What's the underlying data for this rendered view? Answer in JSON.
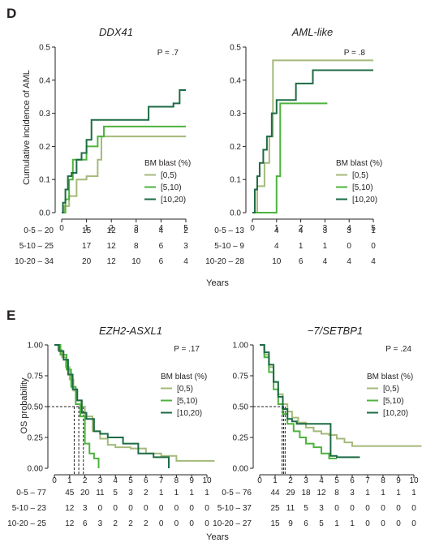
{
  "colors": {
    "g05": "#a5b97a",
    "g510": "#4db33d",
    "g1020": "#1d6b45",
    "axis": "#231f20",
    "dash": "#231f20"
  },
  "legend": {
    "title": "BM blast (%)",
    "entries": [
      "[0,5)",
      "[5,10)",
      "[10,20)"
    ],
    "series_colors": [
      "#a5b97a",
      "#4db33d",
      "#1d6b45"
    ]
  },
  "panel_d": {
    "letter": "D",
    "ylabel": "Cumulative incidence of AML",
    "xlabel": "Years",
    "yticks": [
      "0.0",
      "0.1",
      "0.2",
      "0.3",
      "0.4",
      "0.5"
    ],
    "xticks": [
      "0",
      "1",
      "2",
      "3",
      "4",
      "5"
    ]
  },
  "panel_e": {
    "letter": "E",
    "ylabel": "OS probability",
    "xlabel": "Years",
    "yticks": [
      "0.00",
      "0.25",
      "0.50",
      "0.75",
      "1.00"
    ],
    "xticks": [
      "0",
      "1",
      "2",
      "3",
      "4",
      "5",
      "6",
      "7",
      "8",
      "9",
      "10"
    ]
  },
  "chart_data": [
    {
      "type": "line",
      "panel": "D",
      "title": "DDX41",
      "pvalue": "P = .7",
      "ylabel": "Cumulative incidence of AML",
      "xlabel": "Years",
      "xlim": [
        0,
        5
      ],
      "ylim": [
        0,
        0.5
      ],
      "series": [
        {
          "name": "[0,5)",
          "x": [
            0,
            0.1,
            0.3,
            0.6,
            1.0,
            1.45,
            1.6,
            5.0
          ],
          "y": [
            0,
            0.02,
            0.05,
            0.1,
            0.11,
            0.16,
            0.23,
            0.23
          ]
        },
        {
          "name": "[5,10)",
          "x": [
            0,
            0.15,
            0.3,
            0.45,
            0.7,
            1.0,
            1.45,
            1.7,
            5.0
          ],
          "y": [
            0,
            0.04,
            0.1,
            0.16,
            0.16,
            0.2,
            0.23,
            0.26,
            0.26
          ]
        },
        {
          "name": "[10,20)",
          "x": [
            0,
            0.05,
            0.15,
            0.25,
            0.4,
            0.6,
            0.8,
            1.0,
            1.2,
            2.0,
            3.5,
            4.2,
            4.5,
            4.75,
            5.0
          ],
          "y": [
            0,
            0.03,
            0.07,
            0.11,
            0.12,
            0.16,
            0.18,
            0.22,
            0.28,
            0.28,
            0.32,
            0.32,
            0.33,
            0.37,
            0.37
          ]
        }
      ],
      "at_risk": {
        "x": [
          0,
          1,
          2,
          3,
          4,
          5
        ],
        "rows": [
          {
            "label": "0-5 – 20",
            "values": [
              "15",
              "12",
              "8",
              "4",
              "2"
            ]
          },
          {
            "label": "5-10 – 25",
            "values": [
              "17",
              "12",
              "8",
              "6",
              "3"
            ]
          },
          {
            "label": "10-20 – 34",
            "values": [
              "20",
              "12",
              "10",
              "6",
              "4"
            ]
          }
        ]
      }
    },
    {
      "type": "line",
      "panel": "D",
      "title": "AML-like",
      "pvalue": "P = .8",
      "xlabel": "Years",
      "xlim": [
        0,
        5
      ],
      "ylim": [
        0,
        0.5
      ],
      "series": [
        {
          "name": "[0,5)",
          "x": [
            0,
            0.2,
            0.5,
            0.7,
            0.85,
            5.0
          ],
          "y": [
            0,
            0.08,
            0.15,
            0.23,
            0.46,
            0.46
          ]
        },
        {
          "name": "[5,10)",
          "x": [
            0,
            0.4,
            1.0,
            1.15,
            3.1
          ],
          "y": [
            0,
            0,
            0.11,
            0.33,
            0.33
          ]
        },
        {
          "name": "[10,20)",
          "x": [
            0,
            0.1,
            0.2,
            0.3,
            0.45,
            0.6,
            0.8,
            1.0,
            1.8,
            2.5,
            3.0,
            5.0
          ],
          "y": [
            0,
            0.07,
            0.11,
            0.15,
            0.19,
            0.23,
            0.3,
            0.34,
            0.39,
            0.43,
            0.43,
            0.43
          ]
        }
      ],
      "at_risk": {
        "x": [
          0,
          1,
          2,
          3,
          4,
          5
        ],
        "rows": [
          {
            "label": "0-5 – 13",
            "values": [
              "4",
              "4",
              "3",
              "3",
              "1"
            ]
          },
          {
            "label": "5-10 – 9",
            "values": [
              "4",
              "1",
              "1",
              "0",
              "0"
            ]
          },
          {
            "label": "10-20 – 28",
            "values": [
              "10",
              "6",
              "4",
              "4",
              "4"
            ]
          }
        ]
      }
    },
    {
      "type": "line",
      "panel": "E",
      "title": "EZH2-ASXL1",
      "pvalue": "P = .17",
      "ylabel": "OS probability",
      "xlabel": "Years",
      "xlim": [
        0,
        10
      ],
      "ylim": [
        0,
        1
      ],
      "median_lines": [
        1.3,
        1.6,
        1.9
      ],
      "series": [
        {
          "name": "[0,5)",
          "x": [
            0,
            0.25,
            0.5,
            0.75,
            1.0,
            1.25,
            1.5,
            1.75,
            2.0,
            2.5,
            3.0,
            3.5,
            4.0,
            5.0,
            6.0,
            7.0,
            8.0,
            10.5
          ],
          "y": [
            1.0,
            0.96,
            0.9,
            0.82,
            0.72,
            0.63,
            0.55,
            0.5,
            0.42,
            0.3,
            0.24,
            0.19,
            0.17,
            0.16,
            0.12,
            0.1,
            0.06,
            0.06
          ]
        },
        {
          "name": "[5,10)",
          "x": [
            0,
            0.4,
            0.8,
            1.1,
            1.4,
            1.7,
            2.0,
            2.3,
            2.6,
            2.9
          ],
          "y": [
            1.0,
            0.92,
            0.8,
            0.66,
            0.52,
            0.42,
            0.2,
            0.12,
            0.08,
            0.0
          ]
        },
        {
          "name": "[10,20)",
          "x": [
            0,
            0.3,
            0.6,
            0.9,
            1.2,
            1.5,
            1.8,
            2.1,
            2.6,
            3.0,
            3.5,
            4.5,
            5.5,
            6.5,
            7.5
          ],
          "y": [
            1.0,
            0.95,
            0.88,
            0.76,
            0.64,
            0.55,
            0.45,
            0.4,
            0.3,
            0.28,
            0.25,
            0.2,
            0.12,
            0.09,
            0.0
          ]
        }
      ],
      "at_risk": {
        "x": [
          0,
          1,
          2,
          3,
          4,
          5,
          6,
          7,
          8,
          9,
          10
        ],
        "rows": [
          {
            "label": "0-5 – 77",
            "values": [
              "45",
              "20",
              "11",
              "5",
              "3",
              "2",
              "1",
              "1",
              "1",
              "1"
            ]
          },
          {
            "label": "5-10 – 23",
            "values": [
              "12",
              "3",
              "0",
              "0",
              "0",
              "0",
              "0",
              "0",
              "0",
              "0"
            ]
          },
          {
            "label": "10-20 – 25",
            "values": [
              "12",
              "6",
              "3",
              "2",
              "2",
              "2",
              "0",
              "0",
              "0",
              "0"
            ]
          }
        ]
      }
    },
    {
      "type": "line",
      "panel": "E",
      "title": "−7/SETBP1",
      "pvalue": "P = .24",
      "xlabel": "Years",
      "xlim": [
        0,
        10
      ],
      "ylim": [
        0,
        1
      ],
      "median_lines": [
        1.45,
        1.55,
        1.65
      ],
      "series": [
        {
          "name": "[0,5)",
          "x": [
            0,
            0.3,
            0.6,
            0.9,
            1.2,
            1.5,
            1.8,
            2.1,
            2.5,
            3.0,
            3.5,
            4.0,
            4.5,
            5.0,
            5.5,
            6.0,
            10.5
          ],
          "y": [
            1.0,
            0.92,
            0.82,
            0.7,
            0.6,
            0.52,
            0.46,
            0.41,
            0.37,
            0.33,
            0.3,
            0.28,
            0.27,
            0.24,
            0.21,
            0.18,
            0.18
          ]
        },
        {
          "name": "[5,10)",
          "x": [
            0,
            0.3,
            0.6,
            0.9,
            1.2,
            1.5,
            1.8,
            2.2,
            2.6,
            3.0,
            3.5,
            4.0,
            4.5,
            5.0
          ],
          "y": [
            1.0,
            0.9,
            0.78,
            0.64,
            0.52,
            0.44,
            0.36,
            0.3,
            0.25,
            0.2,
            0.17,
            0.12,
            0.08,
            0.08
          ]
        },
        {
          "name": "[10,20)",
          "x": [
            0,
            0.3,
            0.6,
            0.9,
            1.2,
            1.5,
            1.8,
            2.1,
            2.4,
            3.0,
            4.6,
            5.0,
            6.5
          ],
          "y": [
            1.0,
            0.94,
            0.84,
            0.7,
            0.58,
            0.48,
            0.4,
            0.38,
            0.36,
            0.36,
            0.1,
            0.09,
            0.09
          ]
        }
      ],
      "at_risk": {
        "x": [
          0,
          1,
          2,
          3,
          4,
          5,
          6,
          7,
          8,
          9,
          10
        ],
        "rows": [
          {
            "label": "0-5 – 76",
            "values": [
              "44",
              "29",
              "18",
              "12",
              "8",
              "3",
              "1",
              "1",
              "1",
              "1"
            ]
          },
          {
            "label": "5-10 – 37",
            "values": [
              "25",
              "11",
              "5",
              "3",
              "0",
              "0",
              "0",
              "0",
              "0",
              "0"
            ]
          },
          {
            "label": "10-20 – 27",
            "values": [
              "15",
              "9",
              "6",
              "5",
              "1",
              "1",
              "0",
              "0",
              "0",
              "0"
            ]
          }
        ]
      }
    }
  ]
}
